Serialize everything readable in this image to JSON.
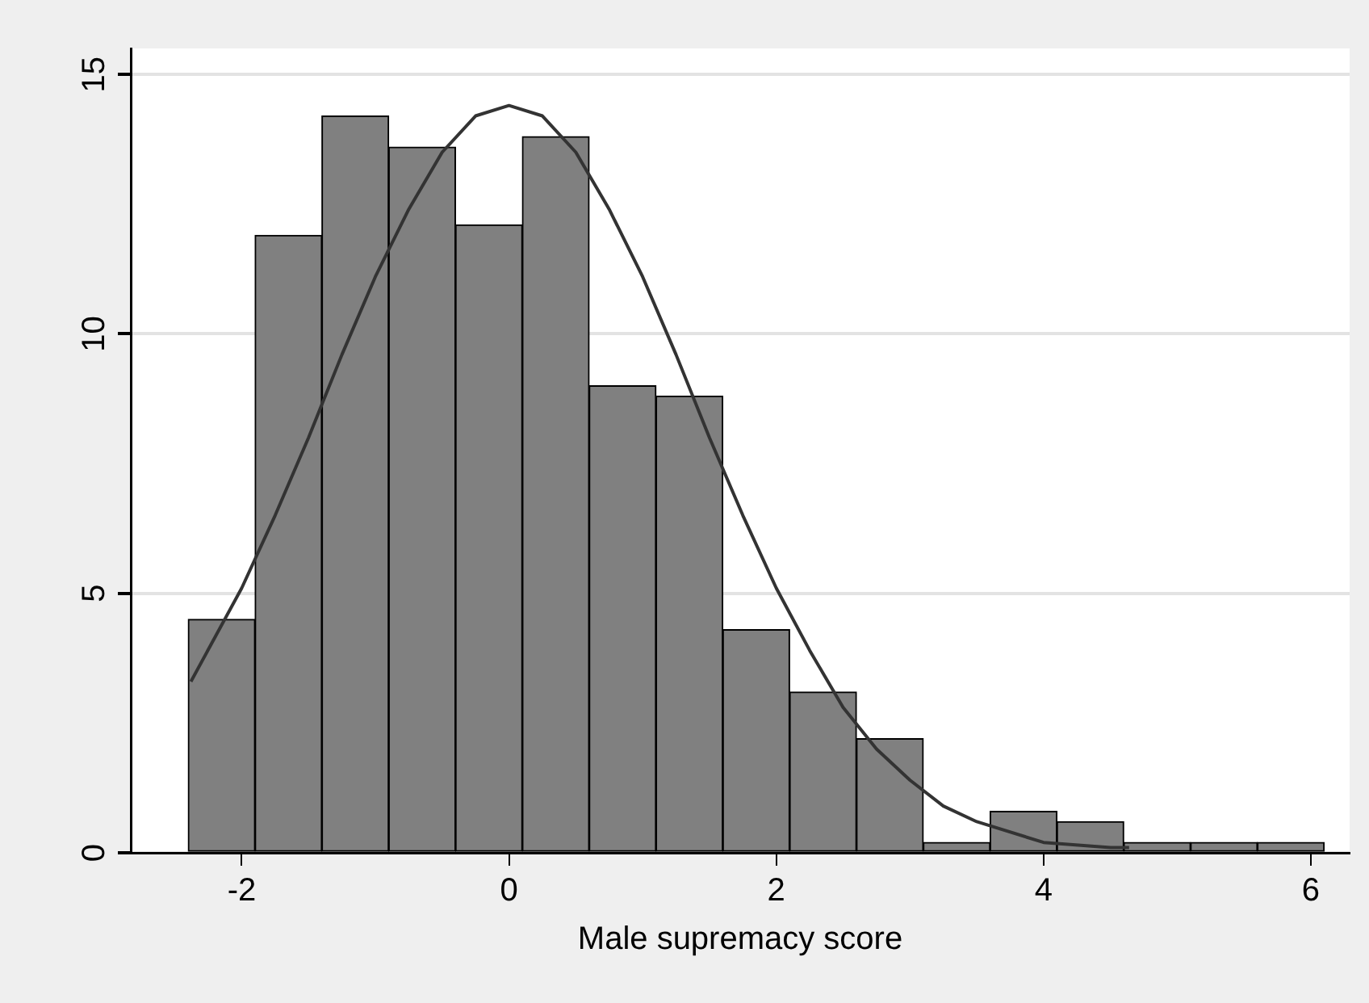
{
  "chart_data": {
    "type": "histogram",
    "xlabel": "Male supremacy score",
    "bins": [
      -2.4,
      -1.9,
      -1.4,
      -0.9,
      -0.4,
      0.1,
      0.6,
      1.1,
      1.6,
      2.1,
      2.6,
      3.1,
      3.6,
      4.1,
      4.6,
      5.1,
      5.6,
      6.1
    ],
    "values": [
      4.5,
      11.9,
      14.2,
      13.6,
      12.1,
      13.8,
      9.0,
      8.8,
      4.3,
      3.1,
      2.2,
      0.2,
      0.8,
      0.6,
      0.2,
      0.2,
      0.2
    ],
    "color": "#808080",
    "series": [
      {
        "type": "line",
        "color": "#333333",
        "marker": "none",
        "x": [
          -2.38,
          -2,
          -1.75,
          -1.5,
          -1.25,
          -1,
          -0.75,
          -0.5,
          -0.25,
          0,
          0.25,
          0.5,
          0.75,
          1,
          1.25,
          1.5,
          1.75,
          2,
          2.25,
          2.5,
          2.75,
          3,
          3.25,
          3.5,
          4,
          4.5,
          4.64
        ],
        "values": [
          3.3,
          5.1,
          6.5,
          8.0,
          9.6,
          11.1,
          12.4,
          13.5,
          14.2,
          14.4,
          14.2,
          13.5,
          12.4,
          11.1,
          9.6,
          8.0,
          6.5,
          5.1,
          3.9,
          2.8,
          2.0,
          1.4,
          0.9,
          0.6,
          0.2,
          0.1,
          0.1
        ]
      }
    ],
    "xlim": [
      -2.83,
      6.29
    ],
    "ylim": [
      0,
      15.5
    ],
    "xticks": [
      -2,
      0,
      2,
      4,
      6
    ],
    "yticks": [
      0,
      5,
      10,
      15
    ],
    "grid": "y",
    "legend": false
  }
}
